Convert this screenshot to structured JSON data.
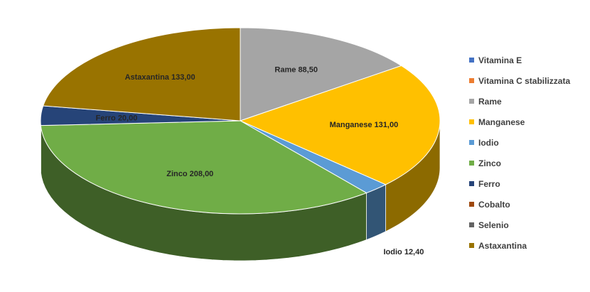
{
  "chart_data": {
    "type": "pie",
    "title": "",
    "categories": [
      "Vitamina E",
      "Vitamina C stabilizzata",
      "Rame",
      "Manganese",
      "Iodio",
      "Zinco",
      "Ferro",
      "Cobalto",
      "Selenio",
      "Astaxantina"
    ],
    "values": [
      0,
      0,
      88.5,
      131.0,
      12.4,
      208.0,
      20.0,
      0,
      0,
      133.0
    ],
    "data_labels": [
      "",
      "",
      "Rame 88,50",
      "Manganese 131,00",
      "Iodio 12,40",
      "Zinco 208,00",
      "Ferro 20,00",
      "",
      "",
      "Astaxantina 133,00"
    ],
    "colors": [
      "#4472c4",
      "#ed7d31",
      "#a5a5a5",
      "#ffc000",
      "#5b9bd5",
      "#70ad47",
      "#264478",
      "#9e480e",
      "#636363",
      "#997300"
    ],
    "legend_position": "right",
    "style": "3d-pie"
  }
}
